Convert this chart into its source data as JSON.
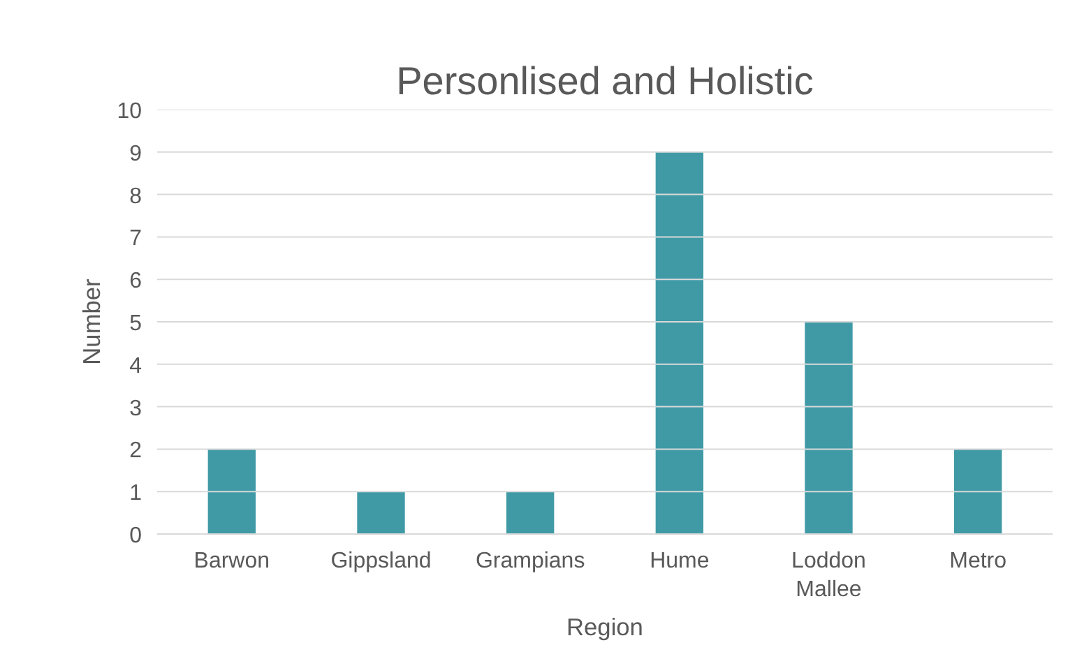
{
  "chart_data": {
    "type": "bar",
    "title": "Personlised and Holistic",
    "xlabel": "Region",
    "ylabel": "Number",
    "categories": [
      "Barwon",
      "Gippsland",
      "Grampians",
      "Hume",
      "Loddon Mallee",
      "Metro"
    ],
    "values": [
      2,
      1,
      1,
      9,
      5,
      2
    ],
    "color": "#3f9aa6",
    "ylim": [
      0,
      10
    ],
    "yticks": [
      0,
      1,
      2,
      3,
      4,
      5,
      6,
      7,
      8,
      9,
      10
    ],
    "grid": "y"
  }
}
